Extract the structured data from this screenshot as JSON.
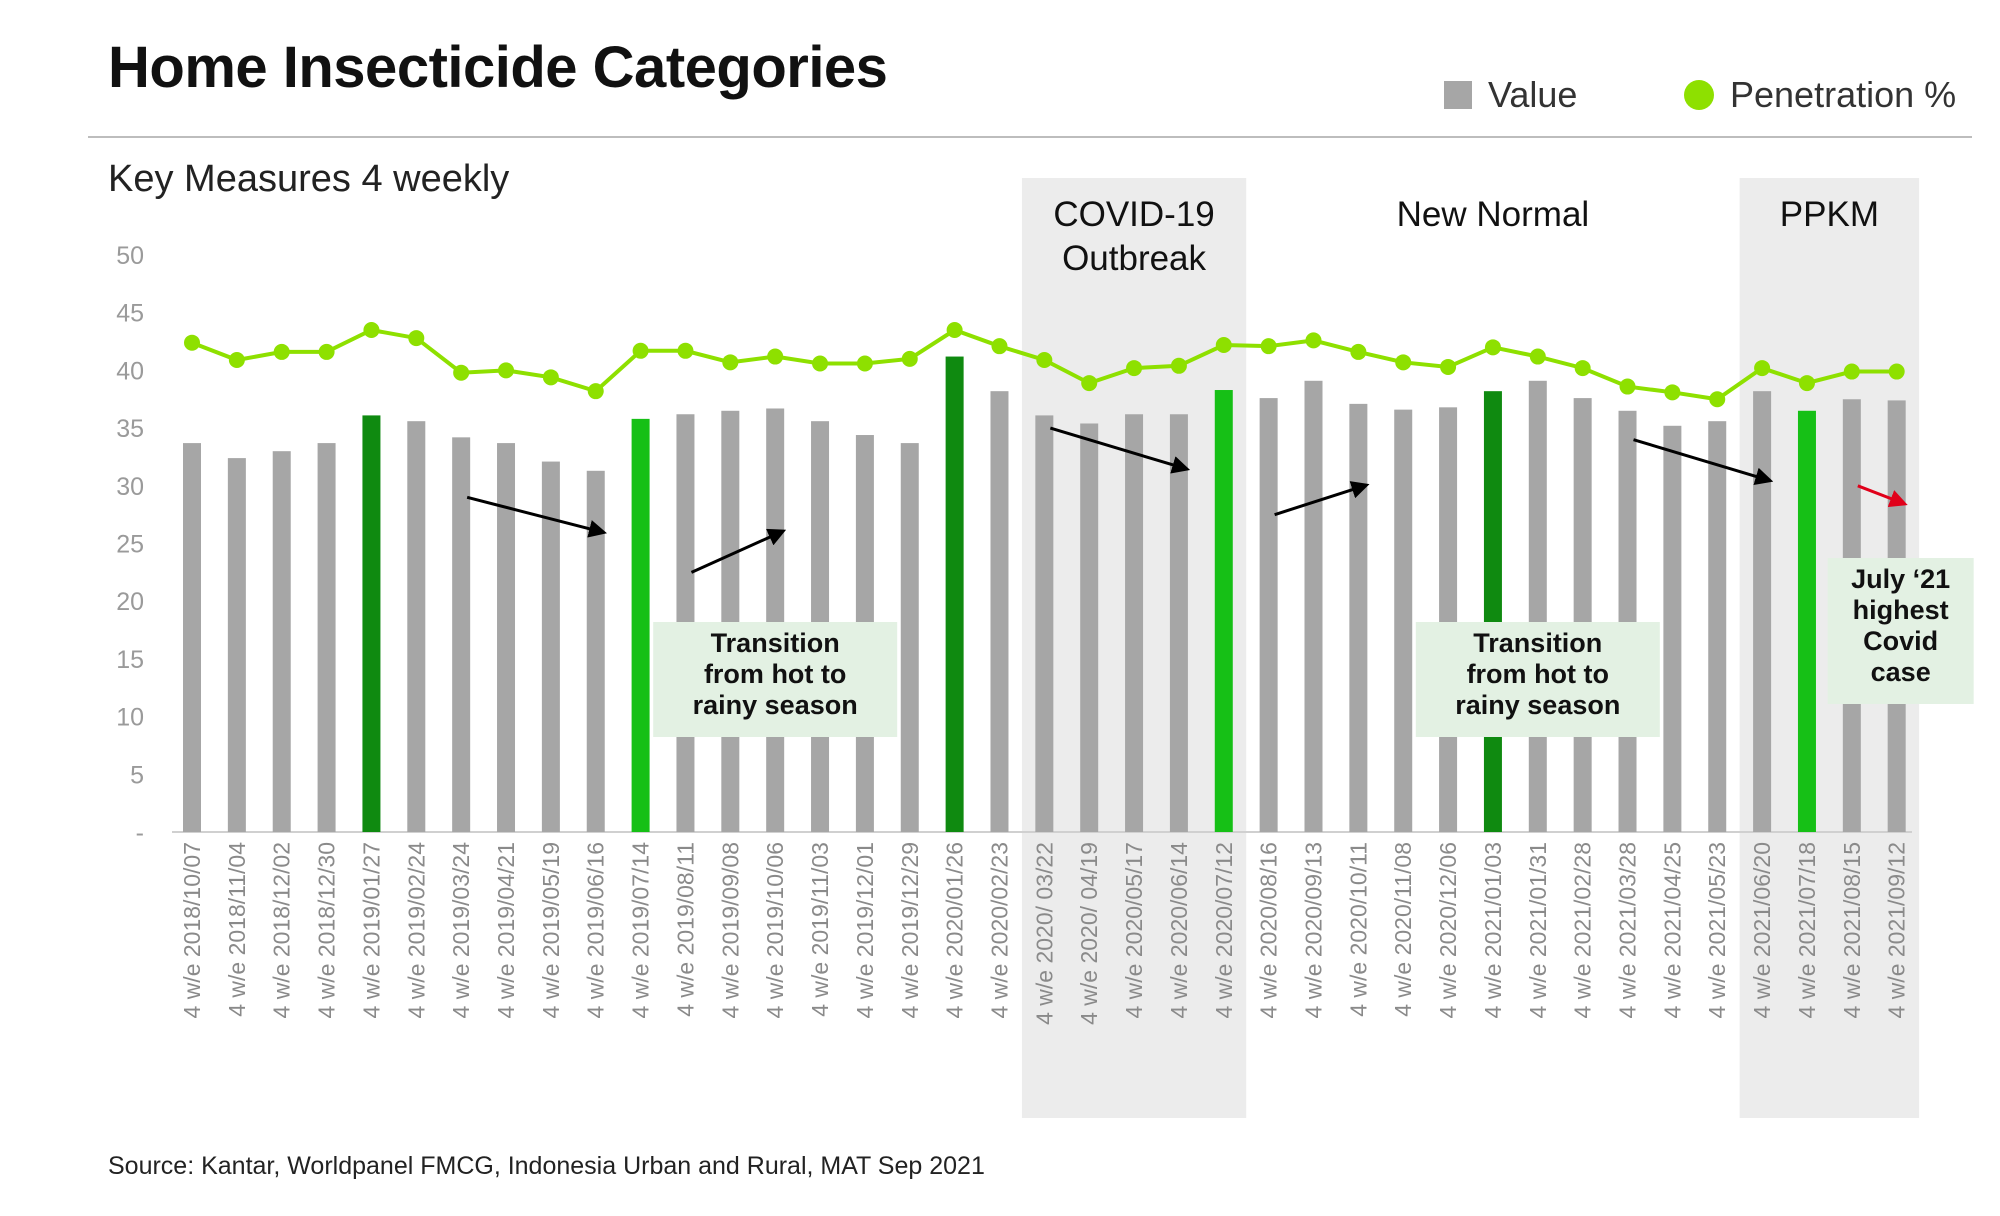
{
  "title": "Home Insecticide Categories",
  "subtitle": "Key Measures 4 weekly",
  "legend": {
    "value_label": "Value",
    "penetration_label": "Penetration %"
  },
  "source": "Source: Kantar, Worldpanel FMCG, Indonesia Urban and Rural, MAT Sep 2021",
  "colors": {
    "value_bar": "#a6a6a6",
    "highlight_dark": "#0f8a10",
    "highlight_bright": "#16c016",
    "penetration": "#8ee000",
    "period_shade": "#ececec",
    "callout_bg": "#e3f1e3",
    "arrow": "#000000",
    "arrow_alert": "#e0001a"
  },
  "periods": [
    {
      "label": "COVID-19\nOutbreak",
      "from": "4 w/e 2020/03/22",
      "to": "4 w/e 2020/07/12",
      "shaded": true
    },
    {
      "label": "New Normal",
      "from": "4 w/e 2020/08/16",
      "to": "4 w/e 2021/05/23",
      "shaded": false
    },
    {
      "label": "PPKM",
      "from": "4 w/e 2021/06/20",
      "to": "4 w/e 2021/09/12",
      "shaded": true
    }
  ],
  "callouts": [
    {
      "text": "Transition\nfrom hot to\nrainy season",
      "anchor": "4 w/e 2019/10/06"
    },
    {
      "text": "Transition\nfrom hot to\nrainy season",
      "anchor": "4 w/e 2021/01/31"
    },
    {
      "text": "July ‘21\nhighest\nCovid\ncase",
      "anchor": "4 w/e 2021/09/12"
    }
  ],
  "arrows": [
    {
      "from": [
        "4 w/e 2019/03/24",
        29
      ],
      "to": [
        "4 w/e 2019/06/16",
        26
      ],
      "color": "arrow"
    },
    {
      "from": [
        "4 w/e 2019/08/11",
        22.5
      ],
      "to": [
        "4 w/e 2019/10/06",
        26
      ],
      "color": "arrow"
    },
    {
      "from": [
        "4 w/e 2020/03/22",
        35
      ],
      "to": [
        "4 w/e 2020/06/14",
        31.5
      ],
      "color": "arrow"
    },
    {
      "from": [
        "4 w/e 2020/08/16",
        27.5
      ],
      "to": [
        "4 w/e 2020/10/11",
        30
      ],
      "color": "arrow"
    },
    {
      "from": [
        "4 w/e 2021/03/28",
        34
      ],
      "to": [
        "4 w/e 2021/06/20",
        30.5
      ],
      "color": "arrow"
    },
    {
      "from": [
        "4 w/e 2021/08/15",
        30
      ],
      "to": [
        "4 w/e 2021/09/12",
        28.5
      ],
      "color": "arrow_alert"
    }
  ],
  "chart_data": {
    "type": "bar",
    "title": "Home Insecticide Categories",
    "subtitle": "Key Measures 4 weekly",
    "ylim": [
      0,
      50
    ],
    "yticks": [
      "-",
      "5",
      "10",
      "15",
      "20",
      "25",
      "30",
      "35",
      "40",
      "45",
      "50"
    ],
    "grid": false,
    "legend_position": "top-right",
    "categories": [
      "4 w/e 2018/10/07",
      "4 w/e 2018/11/04",
      "4 w/e 2018/12/02",
      "4 w/e 2018/12/30",
      "4 w/e 2019/01/27",
      "4 w/e 2019/02/24",
      "4 w/e 2019/03/24",
      "4 w/e 2019/04/21",
      "4 w/e 2019/05/19",
      "4 w/e 2019/06/16",
      "4 w/e 2019/07/14",
      "4 w/e 2019/08/11",
      "4 w/e 2019/09/08",
      "4 w/e 2019/10/06",
      "4 w/e 2019/11/03",
      "4 w/e 2019/12/01",
      "4 w/e 2019/12/29",
      "4 w/e 2020/01/26",
      "4 w/e 2020/02/23",
      "4 w/e 2020/ 03/22",
      "4 w/e 2020/ 04/19",
      "4 w/e 2020/05/17",
      "4 w/e 2020/06/14",
      "4 w/e 2020/07/12",
      "4 w/e 2020/08/16",
      "4 w/e 2020/09/13",
      "4 w/e 2020/10/11",
      "4 w/e 2020/11/08",
      "4 w/e 2020/12/06",
      "4 w/e 2021/01/03",
      "4 w/e 2021/01/31",
      "4 w/e 2021/02/28",
      "4 w/e 2021/03/28",
      "4 w/e 2021/04/25",
      "4 w/e 2021/05/23",
      "4 w/e 2021/06/20",
      "4 w/e 2021/07/18",
      "4 w/e 2021/08/15",
      "4 w/e 2021/09/12"
    ],
    "series": [
      {
        "name": "Value",
        "type": "bar",
        "values": [
          33.7,
          32.4,
          33.0,
          33.7,
          36.1,
          35.6,
          34.2,
          33.7,
          32.1,
          31.3,
          35.8,
          36.2,
          36.5,
          36.7,
          35.6,
          34.4,
          33.7,
          41.2,
          38.2,
          36.1,
          35.4,
          36.2,
          36.2,
          38.3,
          37.6,
          39.1,
          37.1,
          36.6,
          36.8,
          38.2,
          39.1,
          37.6,
          36.5,
          35.2,
          35.6,
          38.2,
          36.5,
          37.5,
          37.4
        ],
        "highlight": {
          "4 w/e 2019/01/27": "dark",
          "4 w/e 2019/07/14": "bright",
          "4 w/e 2020/01/26": "dark",
          "4 w/e 2020/07/12": "bright",
          "4 w/e 2021/01/03": "dark",
          "4 w/e 2021/07/18": "bright"
        }
      },
      {
        "name": "Penetration %",
        "type": "line",
        "values": [
          42.4,
          40.9,
          41.6,
          41.6,
          43.5,
          42.8,
          39.8,
          40.0,
          39.4,
          38.2,
          41.7,
          41.7,
          40.7,
          41.2,
          40.6,
          40.6,
          41.0,
          43.5,
          42.1,
          40.9,
          38.9,
          40.2,
          40.4,
          42.2,
          42.1,
          42.6,
          41.6,
          40.7,
          40.3,
          42.0,
          41.2,
          40.2,
          38.6,
          38.1,
          37.5,
          40.2,
          38.9,
          39.9,
          39.9
        ]
      }
    ]
  }
}
